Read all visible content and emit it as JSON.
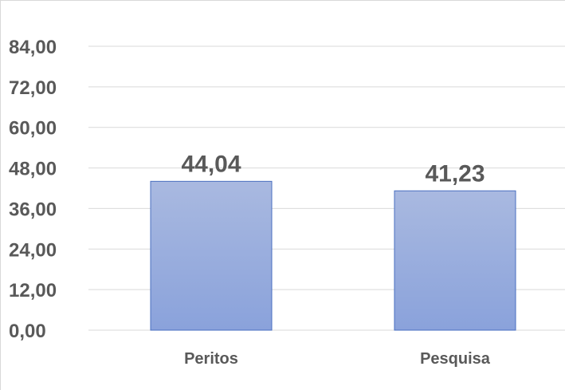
{
  "chart_data": {
    "type": "bar",
    "title": "",
    "xlabel": "",
    "ylabel": "",
    "categories": [
      "Peritos",
      "Pesquisa"
    ],
    "values": [
      44.04,
      41.23
    ],
    "value_labels": [
      "44,04",
      "41,23"
    ],
    "ylim": [
      0,
      84
    ],
    "yticks": [
      0,
      12,
      24,
      36,
      48,
      60,
      72,
      84
    ],
    "ytick_labels": [
      "0,00",
      "12,00",
      "24,00",
      "36,00",
      "48,00",
      "60,00",
      "72,00",
      "84,00"
    ],
    "grid": true,
    "legend": "none",
    "colors": {
      "bar_top": "#a9b9e0",
      "bar_bottom": "#8aa2db",
      "bar_border": "#4a6fc0",
      "gridline": "#d9d9d9",
      "text": "#595959"
    }
  }
}
